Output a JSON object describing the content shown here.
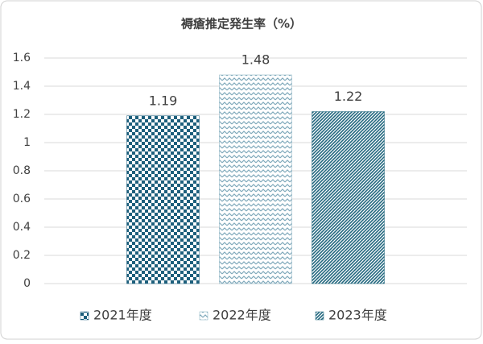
{
  "chart_data": {
    "type": "bar",
    "title": "褥瘡推定発生率（%）",
    "categories": [
      null
    ],
    "series": [
      {
        "name": "2021年度",
        "color": "#1d5f7c",
        "pattern": "checker",
        "values": [
          1.19
        ]
      },
      {
        "name": "2022年度",
        "color": "#7fa9bb",
        "pattern": "zigzag",
        "values": [
          1.48
        ]
      },
      {
        "name": "2023年度",
        "color": "#23687f",
        "pattern": "diagonal",
        "values": [
          1.22
        ]
      }
    ],
    "ylim": [
      0,
      1.6
    ],
    "yticks": [
      0,
      0.2,
      0.4,
      0.6,
      0.8,
      1,
      1.2,
      1.4,
      1.6
    ],
    "grid": true,
    "legend": "bottom",
    "data_labels": true
  }
}
